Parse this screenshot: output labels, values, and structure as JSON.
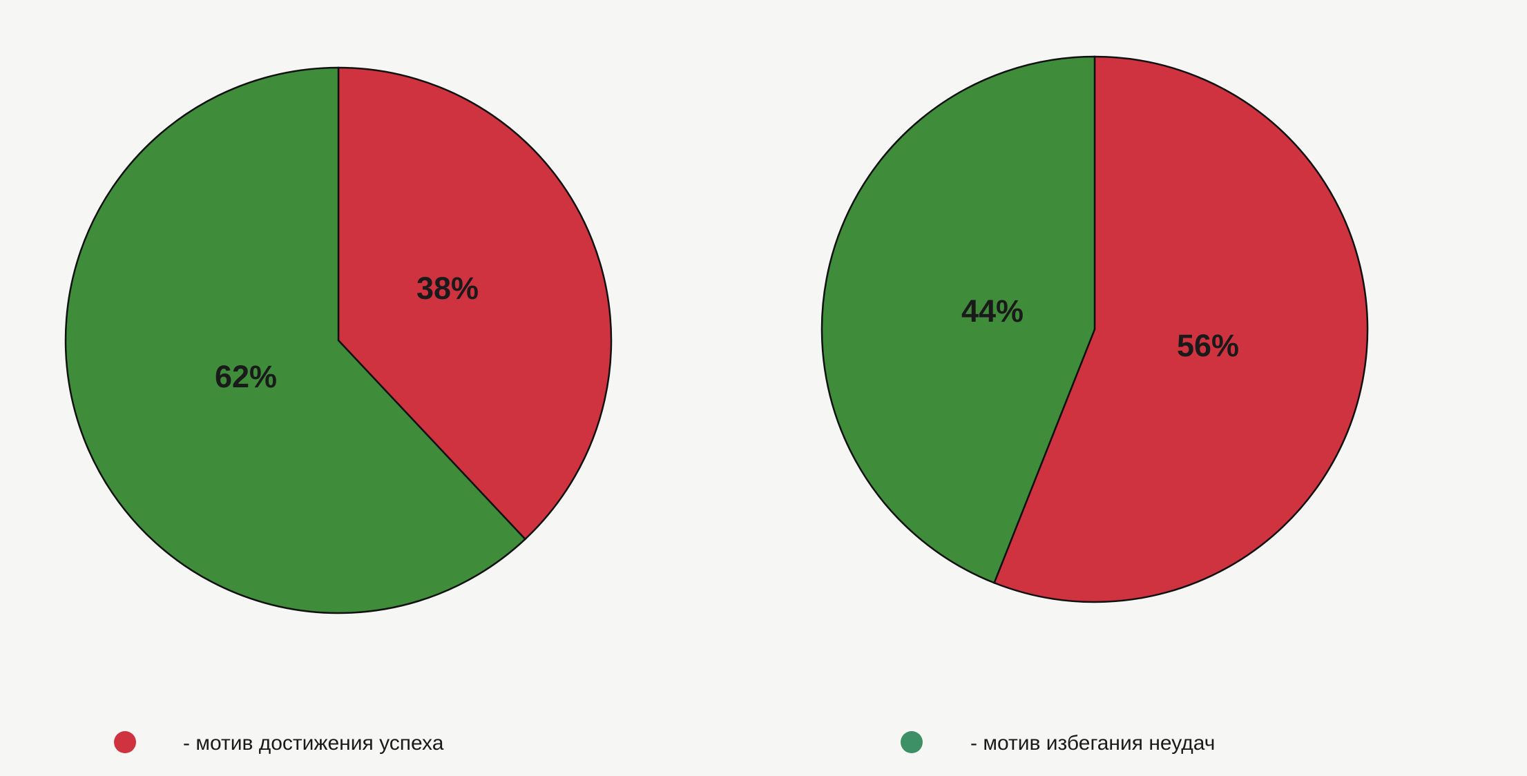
{
  "chart_data": [
    {
      "type": "pie",
      "slices": [
        {
          "name": "мотив достижения успеха",
          "value": 38,
          "label": "38%",
          "color": "#cf3340"
        },
        {
          "name": "мотив избегания неудач",
          "value": 62,
          "label": "62%",
          "color": "#3f8c3a"
        }
      ]
    },
    {
      "type": "pie",
      "slices": [
        {
          "name": "мотив достижения успеха",
          "value": 56,
          "label": "56%",
          "color": "#cf3340"
        },
        {
          "name": "мотив избегания неудач",
          "value": 44,
          "label": "44%",
          "color": "#3f8c3a"
        }
      ]
    }
  ],
  "legend": [
    {
      "label": "- мотив достижения успеха",
      "color": "#cf3340"
    },
    {
      "label": "- мотив избегания неудач",
      "color": "#3d8f66"
    }
  ]
}
